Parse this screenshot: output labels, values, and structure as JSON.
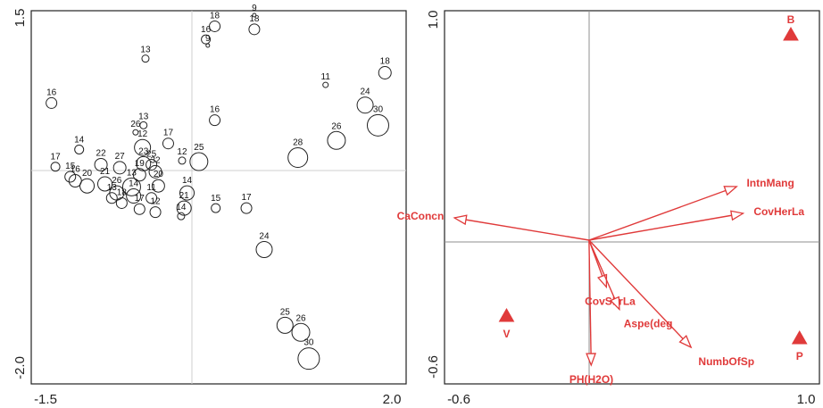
{
  "chart_data": [
    {
      "type": "scatter",
      "title": "",
      "xlabel": "",
      "ylabel": "",
      "xlim": [
        -1.5,
        2.0
      ],
      "ylim": [
        -2.0,
        1.5
      ],
      "xticks": [
        "-1.5",
        "2.0"
      ],
      "yticks": [
        "1.5",
        "-2.0"
      ],
      "point_color": "#222222",
      "points": [
        {
          "label": "18",
          "x": 0.21,
          "y": 1.39,
          "size": 6
        },
        {
          "label": "18",
          "x": 0.61,
          "y": 1.36,
          "size": 6
        },
        {
          "label": "9",
          "x": 0.61,
          "y": 1.5,
          "size": 2
        },
        {
          "label": "16",
          "x": 0.12,
          "y": 1.26,
          "size": 5
        },
        {
          "label": "9",
          "x": 0.14,
          "y": 1.2,
          "size": 2
        },
        {
          "label": "13",
          "x": -0.49,
          "y": 1.07,
          "size": 4
        },
        {
          "label": "16",
          "x": -1.44,
          "y": 0.63,
          "size": 6
        },
        {
          "label": "11",
          "x": 1.33,
          "y": 0.81,
          "size": 3
        },
        {
          "label": "18",
          "x": 1.93,
          "y": 0.93,
          "size": 7
        },
        {
          "label": "24",
          "x": 1.73,
          "y": 0.61,
          "size": 9
        },
        {
          "label": "30",
          "x": 1.86,
          "y": 0.41,
          "size": 12
        },
        {
          "label": "13",
          "x": -0.51,
          "y": 0.41,
          "size": 4
        },
        {
          "label": "16",
          "x": 0.21,
          "y": 0.46,
          "size": 6
        },
        {
          "label": "17",
          "x": -0.26,
          "y": 0.23,
          "size": 6
        },
        {
          "label": "26",
          "x": -0.59,
          "y": 0.34,
          "size": 3
        },
        {
          "label": "26",
          "x": 1.44,
          "y": 0.26,
          "size": 10
        },
        {
          "label": "28",
          "x": 1.05,
          "y": 0.09,
          "size": 11
        },
        {
          "label": "25",
          "x": 0.05,
          "y": 0.05,
          "size": 10
        },
        {
          "label": "12",
          "x": -0.52,
          "y": 0.19,
          "size": 9
        },
        {
          "label": "12",
          "x": -0.12,
          "y": 0.06,
          "size": 4
        },
        {
          "label": "14",
          "x": -1.16,
          "y": 0.17,
          "size": 5
        },
        {
          "label": "17",
          "x": -1.4,
          "y": 0.0,
          "size": 5
        },
        {
          "label": "22",
          "x": -0.94,
          "y": 0.02,
          "size": 7
        },
        {
          "label": "27",
          "x": -0.75,
          "y": -0.01,
          "size": 7
        },
        {
          "label": "23",
          "x": -0.51,
          "y": 0.03,
          "size": 8
        },
        {
          "label": "25",
          "x": -0.43,
          "y": 0.02,
          "size": 6
        },
        {
          "label": "32",
          "x": -0.39,
          "y": -0.05,
          "size": 7
        },
        {
          "label": "19",
          "x": -0.55,
          "y": -0.08,
          "size": 7
        },
        {
          "label": "15",
          "x": -1.25,
          "y": -0.1,
          "size": 6
        },
        {
          "label": "16",
          "x": -1.2,
          "y": -0.14,
          "size": 7
        },
        {
          "label": "20",
          "x": -1.08,
          "y": -0.19,
          "size": 8
        },
        {
          "label": "21",
          "x": -0.9,
          "y": -0.17,
          "size": 8
        },
        {
          "label": "20",
          "x": -0.36,
          "y": -0.19,
          "size": 7
        },
        {
          "label": "13",
          "x": -0.63,
          "y": -0.2,
          "size": 10
        },
        {
          "label": "26",
          "x": -0.78,
          "y": -0.26,
          "size": 8
        },
        {
          "label": "14",
          "x": -0.61,
          "y": -0.29,
          "size": 8
        },
        {
          "label": "13",
          "x": -0.83,
          "y": -0.31,
          "size": 6
        },
        {
          "label": "18",
          "x": -0.73,
          "y": -0.36,
          "size": 6
        },
        {
          "label": "11",
          "x": -0.43,
          "y": -0.31,
          "size": 6
        },
        {
          "label": "14",
          "x": -0.07,
          "y": -0.26,
          "size": 8
        },
        {
          "label": "21",
          "x": -0.1,
          "y": -0.41,
          "size": 8
        },
        {
          "label": "17",
          "x": -0.55,
          "y": -0.42,
          "size": 6
        },
        {
          "label": "12",
          "x": -0.39,
          "y": -0.45,
          "size": 6
        },
        {
          "label": "14",
          "x": -0.13,
          "y": -0.49,
          "size": 4
        },
        {
          "label": "15",
          "x": 0.22,
          "y": -0.41,
          "size": 5
        },
        {
          "label": "17",
          "x": 0.53,
          "y": -0.41,
          "size": 6
        },
        {
          "label": "24",
          "x": 0.71,
          "y": -0.82,
          "size": 9
        },
        {
          "label": "25",
          "x": 0.92,
          "y": -1.57,
          "size": 9
        },
        {
          "label": "26",
          "x": 1.08,
          "y": -1.64,
          "size": 10
        },
        {
          "label": "30",
          "x": 1.16,
          "y": -1.9,
          "size": 12
        }
      ]
    },
    {
      "type": "biplot",
      "title": "",
      "xlabel": "",
      "ylabel": "",
      "xlim": [
        -0.6,
        1.0
      ],
      "ylim": [
        -0.6,
        1.0
      ],
      "xticks": [
        "-0.6",
        "1.0"
      ],
      "yticks": [
        "1.0",
        "-0.6"
      ],
      "color": "#e03a3a",
      "vectors": [
        {
          "name": "IntnMang",
          "x": 0.68,
          "y": 0.24
        },
        {
          "name": "CovHerLa",
          "x": 0.71,
          "y": 0.12
        },
        {
          "name": "CaConcn",
          "x": -0.62,
          "y": 0.1
        },
        {
          "name": "CovShrLa",
          "x": 0.08,
          "y": -0.21
        },
        {
          "name": "Aspe(deg",
          "x": 0.14,
          "y": -0.31
        },
        {
          "name": "NumbOfSp",
          "x": 0.47,
          "y": -0.48
        },
        {
          "name": "PH(H2O)",
          "x": 0.01,
          "y": -0.56
        }
      ],
      "markers": [
        {
          "name": "B",
          "x": 0.93,
          "y": 0.92
        },
        {
          "name": "V",
          "x": -0.38,
          "y": -0.34
        },
        {
          "name": "P",
          "x": 0.97,
          "y": -0.44
        }
      ]
    }
  ]
}
